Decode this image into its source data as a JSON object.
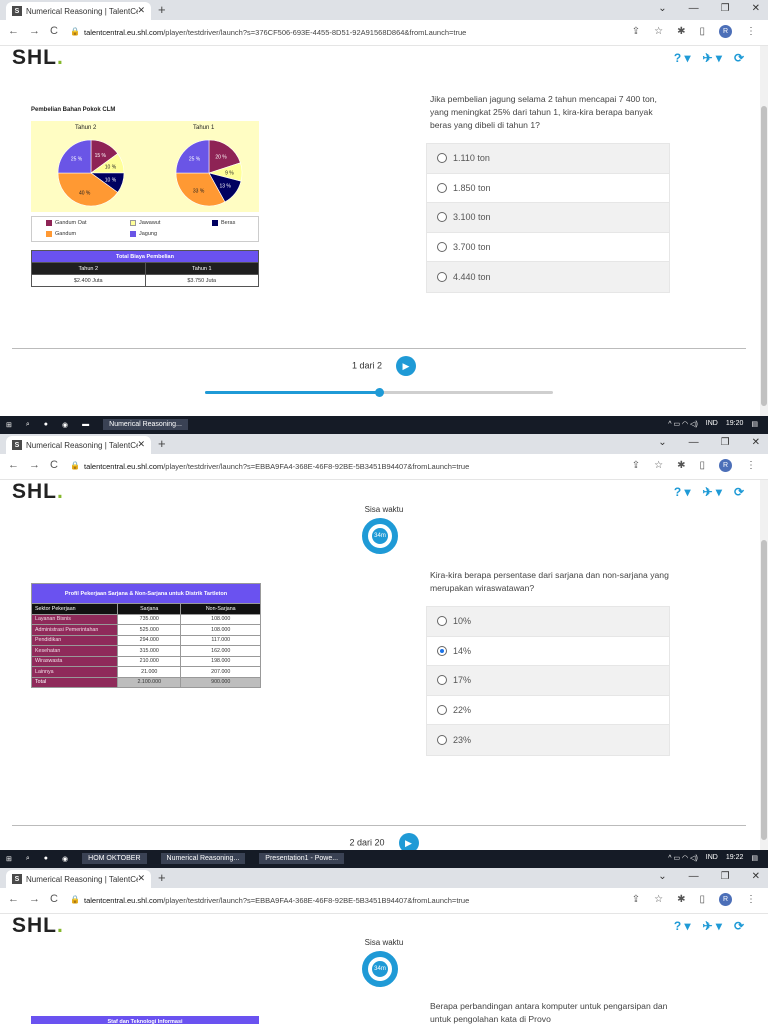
{
  "browser": {
    "tab_title": "Numerical Reasoning | TalentCe",
    "url_host": "talentcentral.eu.shl.com",
    "avatar_letter": "R"
  },
  "screens": [
    {
      "url_path": "/player/testdriver/launch?s=376CF506-693E-4455-8D51-92A91568D864&fromLaunch=true",
      "logo": "SHL",
      "chart_title": "Pembelian Bahan Pokok CLM",
      "chart_data": {
        "type": "pie",
        "title": "Pembelian Bahan Pokok CLM",
        "legend": [
          "Gandum Oat",
          "Jawawut",
          "Beras",
          "Gandum",
          "Jagung"
        ],
        "pies": [
          {
            "name": "Tahun 2",
            "slices": [
              {
                "label": "Gandum Oat",
                "value": 15
              },
              {
                "label": "Jawawut",
                "value": 10
              },
              {
                "label": "Beras",
                "value": 10
              },
              {
                "label": "Gandum",
                "value": 40
              },
              {
                "label": "Jagung",
                "value": 25
              }
            ]
          },
          {
            "name": "Tahun 1",
            "slices": [
              {
                "label": "Gandum Oat",
                "value": 20
              },
              {
                "label": "Jawawut",
                "value": 9
              },
              {
                "label": "Beras",
                "value": 13
              },
              {
                "label": "Gandum",
                "value": 33
              },
              {
                "label": "Jagung",
                "value": 25
              }
            ]
          }
        ],
        "colors": [
          "#8e2355",
          "#ffff99",
          "#000060",
          "#ff9933",
          "#6a55e6"
        ]
      },
      "cost_table": {
        "title": "Total Biaya Pembelian",
        "headers": [
          "Tahun 2",
          "Tahun 1"
        ],
        "values": [
          "$2.400 Juta",
          "$3.750 Juta"
        ]
      },
      "question": "Jika pembelian jagung selama 2 tahun mencapai 7 400 ton, yang meningkat 25% dari tahun 1, kira-kira berapa banyak beras yang dibeli di tahun 1?",
      "options": [
        "1.110 ton",
        "1.850 ton",
        "3.100 ton",
        "3.700 ton",
        "4.440 ton"
      ],
      "pager": "1 dari 2",
      "progress": 0.5
    },
    {
      "url_path": "/player/testdriver/launch?s=EBBA9FA4-368E-46F8-92BE-5B3451B94407&fromLaunch=true",
      "logo": "SHL",
      "timer_label": "Sisa waktu",
      "timer_value": "34m",
      "table": {
        "title": "Profil Pekerjaan Sarjana & Non-Sarjana untuk Distrik Tartleton",
        "headers": [
          "Sektor Pekerjaan",
          "Sarjana",
          "Non-Sarjana"
        ],
        "rows": [
          [
            "Layanan Bisnis",
            "735.000",
            "108.000"
          ],
          [
            "Administrasi Pemerintahan",
            "525.000",
            "108.000"
          ],
          [
            "Pendidikan",
            "294.000",
            "117.000"
          ],
          [
            "Kesehatan",
            "315.000",
            "162.000"
          ],
          [
            "Wiraswasta",
            "210.000",
            "198.000"
          ],
          [
            "Lainnya",
            "21.000",
            "207.000"
          ]
        ],
        "total": [
          "Total",
          "2.100.000",
          "900.000"
        ]
      },
      "question": "Kira-kira berapa persentase dari sarjana dan non-sarjana yang merupakan wiraswatawan?",
      "options": [
        "10%",
        "14%",
        "17%",
        "22%",
        "23%"
      ],
      "selected_option": "14%",
      "pager": "2 dari 20"
    },
    {
      "url_path": "/player/testdriver/launch?s=EBBA9FA4-368E-46F8-92BE-5B3451B94407&fromLaunch=true",
      "logo": "SHL",
      "timer_label": "Sisa waktu",
      "timer_value": "34m",
      "table_title": "Staf dan Teknologi Informasi",
      "question": "Berapa perbandingan antara komputer untuk pengarsipan dan untuk pengolahan kata di Provo"
    }
  ],
  "taskbars": [
    {
      "items": [
        "Numerical Reasoning..."
      ],
      "lang": "IND",
      "time": "19:20"
    },
    {
      "items": [
        "HOM OKTOBER",
        "Numerical Reasoning...",
        "Presentation1 - Powe..."
      ],
      "lang": "IND",
      "time": "19:22"
    }
  ]
}
